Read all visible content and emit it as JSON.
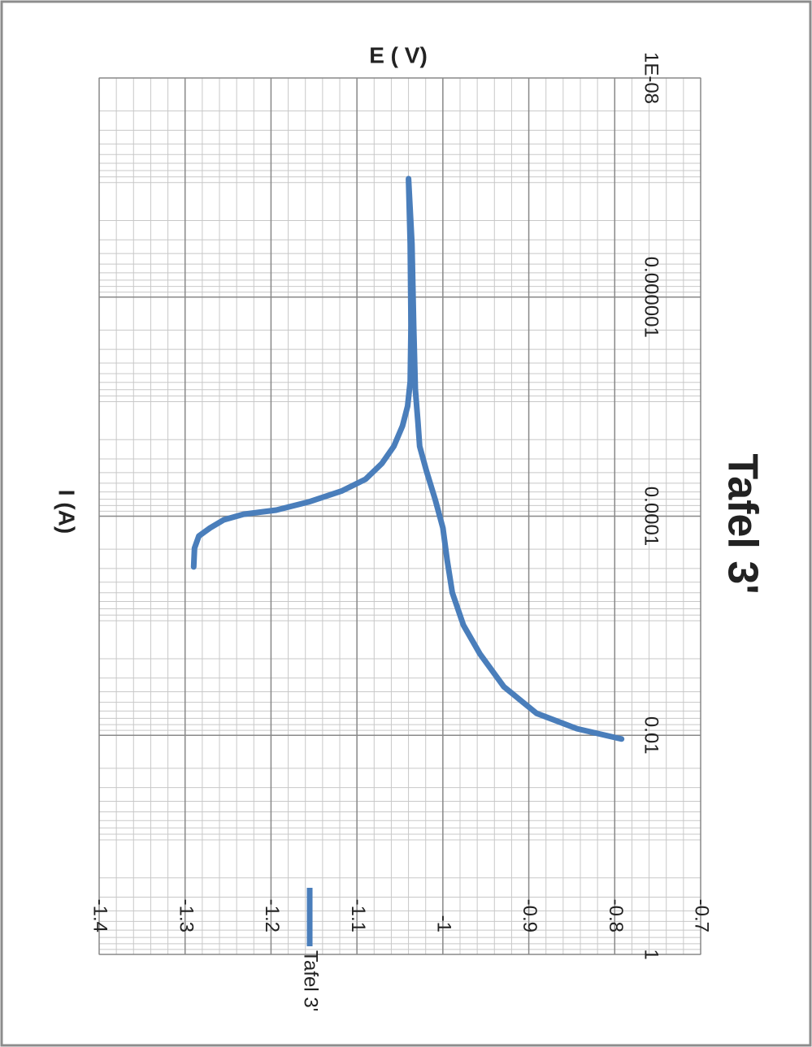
{
  "chart_data": {
    "type": "line",
    "title": "Tafel 3'",
    "x_label": "I (A)",
    "y_label": "E ( V)",
    "x": [
      0.00029,
      0.000196,
      0.000152,
      0.000128,
      0.000108,
      9.6e-05,
      8.8e-05,
      7.4e-05,
      5.9e-05,
      4.6e-05,
      3.3e-05,
      2.3e-05,
      1.5e-05,
      9.9e-06,
      5.9e-06,
      1.8e-06,
      3.25e-07,
      8.3e-08,
      3.25e-07,
      1.8e-06,
      7e-06,
      1.39e-05,
      2.3e-05,
      3.9e-05,
      7e-05,
      0.000128,
      0.00025,
      0.0005,
      0.00099,
      0.0018,
      0.0036,
      0.0063,
      0.0087,
      0.0108
    ],
    "series": [
      {
        "name": "Tafel 3'",
        "color": "#4a7ebb",
        "values": [
          -1.29,
          -1.289,
          -1.284,
          -1.271,
          -1.255,
          -1.232,
          -1.194,
          -1.156,
          -1.118,
          -1.09,
          -1.071,
          -1.057,
          -1.047,
          -1.041,
          -1.038,
          -1.037,
          -1.038,
          -1.04,
          -1.036,
          -1.034,
          -1.032,
          -1.029,
          -1.027,
          -1.019,
          -1.009,
          -1.0,
          -0.995,
          -0.989,
          -0.976,
          -0.957,
          -0.929,
          -0.891,
          -0.844,
          -0.792
        ]
      }
    ],
    "xlim": [
      1e-08,
      1
    ],
    "xscale": "log",
    "xticks": [
      {
        "value": 1e-08,
        "label": "1E-08"
      },
      1e-06,
      0.0001,
      0.01,
      1
    ],
    "ylim": [
      -1.4,
      -0.7
    ],
    "yticks": [
      -1.4,
      -1.3,
      -1.2,
      -1.1,
      -1,
      -0.9,
      -0.8,
      -0.7
    ],
    "grid": true,
    "legend": "right"
  }
}
